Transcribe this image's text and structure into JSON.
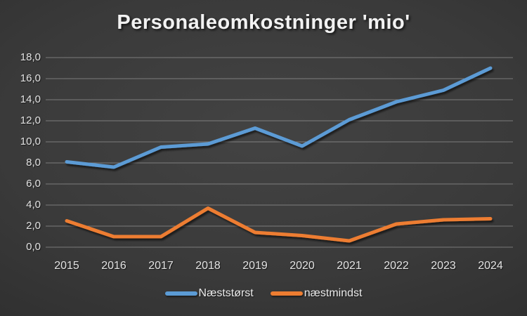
{
  "title": "Personaleomkostninger 'mio'",
  "chart_data": {
    "type": "line",
    "title": "Personaleomkostninger 'mio'",
    "xlabel": "",
    "ylabel": "",
    "categories": [
      "2015",
      "2016",
      "2017",
      "2018",
      "2019",
      "2020",
      "2021",
      "2022",
      "2023",
      "2024"
    ],
    "series": [
      {
        "name": "Næststørst",
        "color": "#5B9BD5",
        "values": [
          8.1,
          7.6,
          9.5,
          9.8,
          11.3,
          9.6,
          12.1,
          13.8,
          14.9,
          17.0
        ]
      },
      {
        "name": "næstmindst",
        "color": "#ED7D31",
        "values": [
          2.5,
          1.0,
          1.0,
          3.7,
          1.4,
          1.1,
          0.6,
          2.2,
          2.6,
          2.7
        ]
      }
    ],
    "ylim": [
      0,
      18
    ],
    "y_tick_step": 2,
    "y_tick_labels": [
      "18,0",
      "16,0",
      "14,0",
      "12,0",
      "10,0",
      "8,0",
      "6,0",
      "4,0",
      "2,0",
      "0,0"
    ],
    "grid": true,
    "legend_position": "bottom",
    "background": "dark-gray-gradient"
  },
  "legend": {
    "items": [
      {
        "label": "Næststørst",
        "color": "#5B9BD5"
      },
      {
        "label": "næstmindst",
        "color": "#ED7D31"
      }
    ]
  }
}
